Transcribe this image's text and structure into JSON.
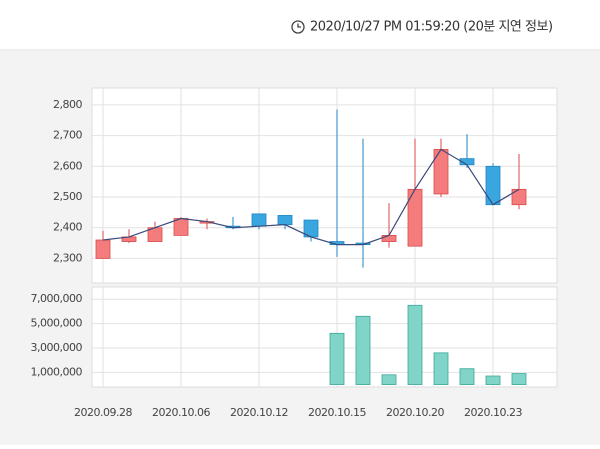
{
  "timestamp": "2020/10/27 PM 01:59:20 (20분 지연 정보)",
  "chart_data": [
    {
      "type": "candlestick",
      "color_up": "#f47c7c",
      "color_down": "#3aa6e0",
      "line_color": "#3b4a7a",
      "open": [
        2300,
        2355,
        2355,
        2375,
        2415,
        2405,
        2445,
        2440,
        2425,
        2355,
        2350,
        2355,
        2340,
        2510,
        2625,
        2600,
        2475
      ],
      "high": [
        2390,
        2395,
        2420,
        2435,
        2430,
        2435,
        2445,
        2440,
        2425,
        2785,
        2690,
        2480,
        2690,
        2690,
        2705,
        2610,
        2640
      ],
      "low": [
        2300,
        2350,
        2355,
        2375,
        2395,
        2395,
        2395,
        2395,
        2355,
        2305,
        2270,
        2335,
        2340,
        2500,
        2595,
        2475,
        2460
      ],
      "close": [
        2360,
        2370,
        2400,
        2430,
        2420,
        2400,
        2405,
        2410,
        2370,
        2345,
        2345,
        2375,
        2525,
        2655,
        2605,
        2475,
        2525
      ],
      "ylim": [
        2220,
        2855
      ],
      "yticks": [
        {
          "value": 2300,
          "label": "2,300"
        },
        {
          "value": 2400,
          "label": "2,400"
        },
        {
          "value": 2500,
          "label": "2,500"
        },
        {
          "value": 2600,
          "label": "2,600"
        },
        {
          "value": 2700,
          "label": "2,700"
        },
        {
          "value": 2800,
          "label": "2,800"
        }
      ],
      "grid": true
    },
    {
      "type": "bar",
      "color": "#80d4c8",
      "categories": [
        "2020.09.28",
        null,
        null,
        "2020.10.06",
        null,
        null,
        "2020.10.12",
        null,
        null,
        "2020.10.15",
        null,
        null,
        "2020.10.20",
        null,
        null,
        "2020.10.23",
        null
      ],
      "values": [
        0,
        0,
        0,
        0,
        0,
        0,
        0,
        0,
        0,
        4200000,
        5600000,
        800000,
        6500000,
        2600000,
        1300000,
        700000,
        900000
      ],
      "ylim": [
        -200000,
        8000000
      ],
      "yticks": [
        {
          "value": 1000000,
          "label": "1,000,000"
        },
        {
          "value": 3000000,
          "label": "3,000,000"
        },
        {
          "value": 5000000,
          "label": "5,000,000"
        },
        {
          "value": 7000000,
          "label": "7,000,000"
        }
      ],
      "grid": true
    }
  ]
}
